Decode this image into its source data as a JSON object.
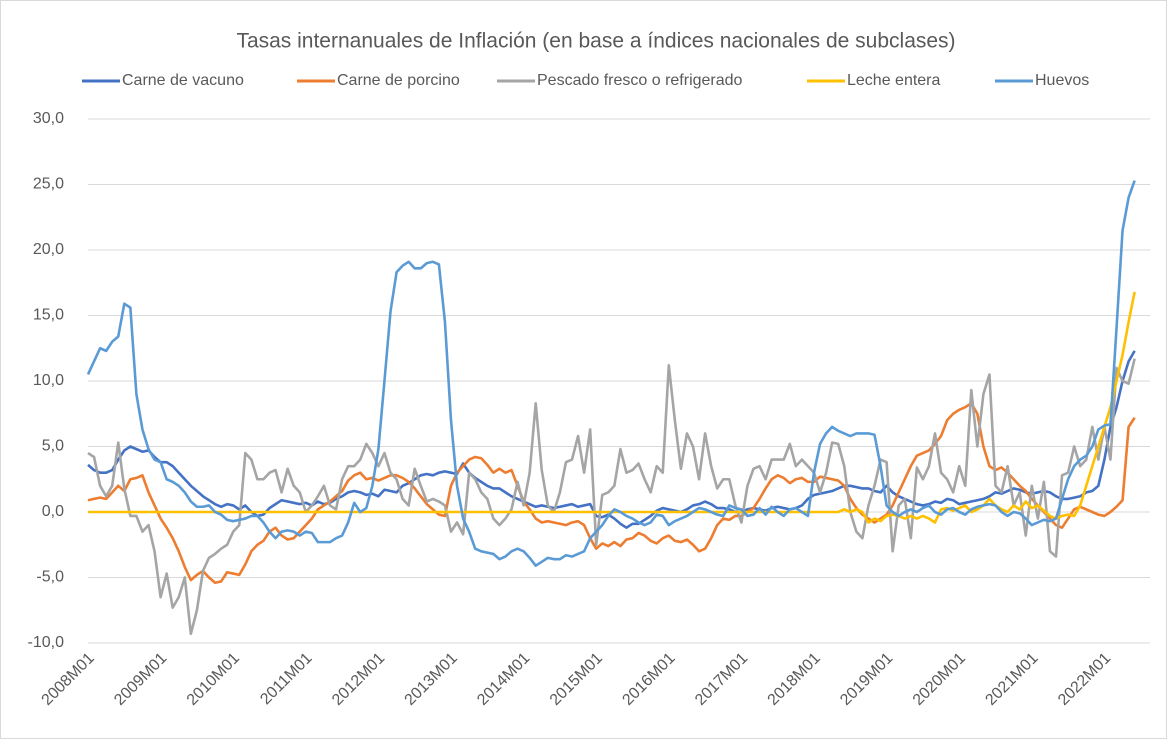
{
  "chart_data": {
    "type": "line",
    "title": "Tasas internanuales de Inflación (en base a índices nacionales de subclases)",
    "categories": [
      "2008M01",
      null,
      null,
      null,
      null,
      null,
      null,
      null,
      null,
      null,
      null,
      null,
      "2009M01",
      null,
      null,
      null,
      null,
      null,
      null,
      null,
      null,
      null,
      null,
      null,
      "2010M01",
      null,
      null,
      null,
      null,
      null,
      null,
      null,
      null,
      null,
      null,
      null,
      "2011M01",
      null,
      null,
      null,
      null,
      null,
      null,
      null,
      null,
      null,
      null,
      null,
      "2012M01",
      null,
      null,
      null,
      null,
      null,
      null,
      null,
      null,
      null,
      null,
      null,
      "2013M01",
      null,
      null,
      null,
      null,
      null,
      null,
      null,
      null,
      null,
      null,
      null,
      "2014M01",
      null,
      null,
      null,
      null,
      null,
      null,
      null,
      null,
      null,
      null,
      null,
      "2015M01",
      null,
      null,
      null,
      null,
      null,
      null,
      null,
      null,
      null,
      null,
      null,
      "2016M01",
      null,
      null,
      null,
      null,
      null,
      null,
      null,
      null,
      null,
      null,
      null,
      "2017M01",
      null,
      null,
      null,
      null,
      null,
      null,
      null,
      null,
      null,
      null,
      null,
      "2018M01",
      null,
      null,
      null,
      null,
      null,
      null,
      null,
      null,
      null,
      null,
      null,
      "2019M01",
      null,
      null,
      null,
      null,
      null,
      null,
      null,
      null,
      null,
      null,
      null,
      "2020M01",
      null,
      null,
      null,
      null,
      null,
      null,
      null,
      null,
      null,
      null,
      null,
      "2021M01",
      null,
      null,
      null,
      null,
      null,
      null,
      null,
      null,
      null,
      null,
      null,
      "2022M01",
      null,
      null,
      null,
      null,
      null
    ],
    "series": [
      {
        "name": "Carne de vacuno",
        "color": "#4472c4",
        "values": [
          3.6,
          3.2,
          3.0,
          3.0,
          3.2,
          4.0,
          4.7,
          5.0,
          4.8,
          4.6,
          4.7,
          4.2,
          3.8,
          3.8,
          3.5,
          3.0,
          2.5,
          2.0,
          1.6,
          1.2,
          0.9,
          0.6,
          0.4,
          0.6,
          0.5,
          0.2,
          0.5,
          0.0,
          -0.3,
          -0.2,
          0.3,
          0.6,
          0.9,
          0.8,
          0.7,
          0.6,
          0.7,
          0.5,
          0.8,
          0.6,
          0.7,
          1.0,
          1.2,
          1.5,
          1.6,
          1.5,
          1.3,
          1.4,
          1.2,
          1.7,
          1.6,
          1.5,
          2.0,
          2.2,
          2.5,
          2.8,
          2.9,
          2.8,
          3.0,
          3.1,
          3.0,
          2.9,
          3.7,
          3.0,
          2.6,
          2.3,
          2.0,
          1.8,
          1.8,
          1.5,
          1.2,
          1.0,
          0.8,
          0.6,
          0.4,
          0.5,
          0.4,
          0.3,
          0.4,
          0.5,
          0.6,
          0.4,
          0.5,
          0.6,
          -0.3,
          -0.4,
          -0.2,
          -0.5,
          -0.9,
          -1.2,
          -0.9,
          -0.9,
          -0.6,
          -0.3,
          0.1,
          0.3,
          0.2,
          0.1,
          0.0,
          0.2,
          0.5,
          0.6,
          0.8,
          0.6,
          0.3,
          0.3,
          0.2,
          0.0,
          0.0,
          0.2,
          0.3,
          0.2,
          0.1,
          0.3,
          0.4,
          0.3,
          0.2,
          0.3,
          0.5,
          1.0,
          1.3,
          1.4,
          1.5,
          1.6,
          1.8,
          2.0,
          2.0,
          1.9,
          1.8,
          1.8,
          1.6,
          1.5,
          2.0,
          1.5,
          1.2,
          1.0,
          0.8,
          0.6,
          0.5,
          0.6,
          0.8,
          0.7,
          1.0,
          0.9,
          0.6,
          0.7,
          0.8,
          0.9,
          1.0,
          1.2,
          1.5,
          1.4,
          1.6,
          1.8,
          1.7,
          1.5,
          1.4,
          1.5,
          1.6,
          1.5,
          1.2,
          1.0,
          1.0,
          1.1,
          1.2,
          1.5,
          1.6,
          2.0,
          4.0,
          6.5,
          8.0,
          10.0,
          11.5,
          12.3
        ]
      },
      {
        "name": "Carne de porcino",
        "color": "#ed7d31",
        "values": [
          0.9,
          1.0,
          1.1,
          1.0,
          1.5,
          2.0,
          1.6,
          2.5,
          2.6,
          2.8,
          1.5,
          0.5,
          -0.5,
          -1.2,
          -2.0,
          -3.0,
          -4.2,
          -5.2,
          -4.8,
          -4.5,
          -5.0,
          -5.4,
          -5.3,
          -4.6,
          -4.7,
          -4.8,
          -4.0,
          -3.0,
          -2.5,
          -2.2,
          -1.5,
          -1.2,
          -1.8,
          -2.1,
          -2.0,
          -1.5,
          -1.0,
          -0.5,
          0.2,
          0.5,
          0.8,
          1.2,
          1.6,
          2.4,
          2.8,
          3.0,
          2.5,
          2.6,
          2.4,
          2.6,
          2.8,
          2.8,
          2.6,
          2.3,
          1.8,
          1.2,
          0.6,
          0.2,
          -0.2,
          -0.3,
          2.0,
          3.0,
          3.5,
          4.0,
          4.2,
          4.1,
          3.6,
          3.0,
          3.3,
          3.0,
          3.2,
          2.0,
          0.8,
          0.2,
          -0.5,
          -0.8,
          -0.7,
          -0.8,
          -0.9,
          -1.0,
          -0.8,
          -0.7,
          -1.0,
          -2.0,
          -2.8,
          -2.4,
          -2.6,
          -2.3,
          -2.6,
          -2.1,
          -2.0,
          -1.6,
          -1.8,
          -2.2,
          -2.4,
          -2.0,
          -1.8,
          -2.2,
          -2.3,
          -2.1,
          -2.5,
          -3.0,
          -2.8,
          -2.0,
          -1.0,
          -0.5,
          -0.6,
          -0.3,
          -0.3,
          0.0,
          0.3,
          1.0,
          1.8,
          2.5,
          2.8,
          2.6,
          2.2,
          2.5,
          2.6,
          2.3,
          2.3,
          2.7,
          2.6,
          2.5,
          2.4,
          2.0,
          1.0,
          0.3,
          -0.2,
          -0.5,
          -0.8,
          -0.5,
          -0.2,
          0.5,
          1.5,
          2.5,
          3.5,
          4.3,
          4.5,
          4.7,
          5.2,
          5.8,
          7.0,
          7.5,
          7.8,
          8.0,
          8.3,
          7.5,
          5.0,
          3.5,
          3.2,
          3.4,
          3.0,
          2.5,
          2.0,
          1.6,
          1.0,
          0.5,
          0.0,
          -0.5,
          -1.0,
          -1.2,
          -0.5,
          0.2,
          0.4,
          0.2,
          0.0,
          -0.2,
          -0.3,
          0.0,
          0.4,
          0.9,
          6.5,
          7.2
        ]
      },
      {
        "name": "Pescado fresco o refrigerado",
        "color": "#a5a5a5",
        "values": [
          4.5,
          4.2,
          2.0,
          1.2,
          2.0,
          5.3,
          1.8,
          -0.3,
          -0.3,
          -1.5,
          -1.0,
          -3.0,
          -6.5,
          -4.7,
          -7.3,
          -6.5,
          -5.0,
          -9.3,
          -7.5,
          -4.5,
          -3.5,
          -3.2,
          -2.8,
          -2.5,
          -1.5,
          -1.0,
          4.5,
          4.0,
          2.5,
          2.5,
          3.0,
          3.2,
          1.5,
          3.3,
          2.0,
          1.5,
          0.0,
          0.5,
          1.2,
          2.0,
          0.5,
          0.2,
          2.5,
          3.5,
          3.5,
          4.0,
          5.2,
          4.5,
          3.5,
          4.5,
          3.0,
          2.5,
          1.0,
          0.5,
          3.3,
          2.0,
          0.8,
          1.0,
          0.8,
          0.5,
          -1.5,
          -0.8,
          -1.7,
          3.0,
          2.5,
          1.5,
          1.0,
          -0.5,
          -1.0,
          -0.5,
          0.2,
          2.3,
          0.5,
          3.0,
          8.3,
          3.2,
          0.5,
          0.0,
          1.5,
          3.8,
          4.0,
          5.8,
          3.0,
          6.3,
          -2.5,
          1.3,
          1.5,
          2.0,
          4.8,
          3.0,
          3.2,
          3.7,
          2.5,
          1.5,
          3.5,
          3.0,
          11.2,
          7.0,
          3.3,
          6.0,
          5.0,
          2.5,
          6.0,
          3.5,
          1.8,
          2.5,
          2.5,
          0.5,
          -0.8,
          2.0,
          3.3,
          3.5,
          2.5,
          4.0,
          4.0,
          4.0,
          5.2,
          3.5,
          4.0,
          3.5,
          3.0,
          1.5,
          3.0,
          5.3,
          5.2,
          3.5,
          0.0,
          -1.5,
          -2.0,
          0.5,
          2.0,
          4.0,
          3.8,
          -3.0,
          0.5,
          1.0,
          -2.0,
          3.4,
          2.5,
          3.5,
          6.0,
          3.0,
          2.5,
          1.5,
          3.5,
          2.0,
          9.3,
          5.0,
          9.0,
          10.5,
          2.0,
          1.5,
          3.5,
          0.5,
          1.5,
          -1.8,
          2.0,
          -0.5,
          2.3,
          -3.0,
          -3.4,
          2.8,
          3.0,
          5.0,
          3.5,
          4.0,
          6.5,
          4.0,
          6.5,
          4.0,
          11.0,
          10.0,
          9.8,
          11.7
        ]
      },
      {
        "name": "Leche entera",
        "color": "#ffc000",
        "values": [
          0,
          0,
          0,
          0,
          0,
          0,
          0,
          0,
          0,
          0,
          0,
          0,
          0,
          0,
          0,
          0,
          0,
          0,
          0,
          0,
          0,
          0,
          0,
          0,
          0,
          0,
          0,
          0,
          0,
          0,
          0,
          0,
          0,
          0,
          0,
          0,
          0,
          0,
          0,
          0,
          0,
          0,
          0,
          0,
          0,
          0,
          0,
          0,
          0,
          0,
          0,
          0,
          0,
          0,
          0,
          0,
          0,
          0,
          0,
          0,
          0,
          0,
          0,
          0,
          0,
          0,
          0,
          0,
          0,
          0,
          0,
          0,
          0,
          0,
          0,
          0,
          0,
          0,
          0,
          0,
          0,
          0,
          0,
          0,
          0,
          0,
          0,
          0,
          0,
          0,
          0,
          0,
          0,
          0,
          0,
          0,
          0,
          0,
          0,
          0,
          0,
          0,
          0,
          0,
          0,
          0,
          0,
          0,
          0,
          0,
          0,
          0,
          0,
          0,
          0,
          0,
          0,
          0,
          0,
          0,
          0,
          0,
          0,
          0,
          0,
          0.2,
          0,
          0.2,
          0,
          -0.8,
          -0.5,
          -0.7,
          -0.3,
          -0.2,
          -0.3,
          -0.5,
          -0.3,
          -0.5,
          -0.3,
          -0.5,
          -0.8,
          0.2,
          0.3,
          0.1,
          0.3,
          0.5,
          0.0,
          0.2,
          0.5,
          1.0,
          0.5,
          0.2,
          0.0,
          0.5,
          0.2,
          0.8,
          0.3,
          0.5,
          0.1,
          -0.3,
          -0.5,
          -0.3,
          -0.2,
          -0.3,
          0.5,
          2.0,
          3.5,
          5.0,
          6.5,
          8.0,
          10.0,
          12.0,
          14.5,
          16.8
        ]
      },
      {
        "name": "Huevos",
        "color": "#5b9bd5",
        "values": [
          10.5,
          11.5,
          12.5,
          12.3,
          13.0,
          13.4,
          15.9,
          15.6,
          9.0,
          6.3,
          4.8,
          4.0,
          3.8,
          2.5,
          2.3,
          2.0,
          1.5,
          0.8,
          0.4,
          0.4,
          0.5,
          0.0,
          -0.2,
          -0.6,
          -0.7,
          -0.6,
          -0.5,
          -0.3,
          -0.3,
          -0.8,
          -1.5,
          -2.0,
          -1.5,
          -1.4,
          -1.5,
          -1.8,
          -1.5,
          -1.6,
          -2.3,
          -2.3,
          -2.3,
          -2.0,
          -1.8,
          -0.8,
          0.7,
          0.0,
          0.3,
          2.0,
          4.8,
          10.0,
          15.3,
          18.3,
          18.8,
          19.1,
          18.6,
          18.6,
          19.0,
          19.1,
          18.9,
          14.5,
          7.0,
          2.0,
          -0.5,
          -1.5,
          -2.8,
          -3.0,
          -3.1,
          -3.2,
          -3.6,
          -3.4,
          -3.0,
          -2.8,
          -3.0,
          -3.5,
          -4.1,
          -3.8,
          -3.5,
          -3.6,
          -3.6,
          -3.3,
          -3.4,
          -3.2,
          -3.0,
          -2.0,
          -1.5,
          -1.0,
          -0.3,
          0.2,
          0.0,
          -0.3,
          -0.5,
          -0.8,
          -1.0,
          -0.8,
          -0.2,
          -0.3,
          -1.0,
          -0.7,
          -0.5,
          -0.3,
          0.0,
          0.3,
          0.2,
          0.0,
          -0.2,
          -0.3,
          0.5,
          0.3,
          0.2,
          -0.3,
          -0.2,
          0.3,
          -0.2,
          0.4,
          0.0,
          -0.3,
          0.2,
          0.3,
          0.0,
          -0.3,
          3.0,
          5.2,
          6.0,
          6.5,
          6.2,
          6.0,
          5.8,
          6.0,
          6.0,
          6.0,
          5.9,
          3.5,
          0.5,
          0.0,
          -0.3,
          0.0,
          0.2,
          0.0,
          0.3,
          0.5,
          0.0,
          -0.2,
          0.2,
          0.3,
          0.0,
          -0.2,
          0.2,
          0.4,
          0.5,
          0.6,
          0.5,
          0.0,
          -0.3,
          0.0,
          -0.1,
          -0.5,
          -1.0,
          -0.8,
          -0.6,
          -0.7,
          -0.5,
          1.0,
          2.5,
          3.5,
          4.0,
          4.3,
          5.0,
          6.3,
          6.6,
          6.7,
          14.0,
          21.5,
          24.0,
          25.3
        ]
      }
    ],
    "ylim": [
      -10,
      30
    ],
    "yticks": [
      {
        "value": -10,
        "label": "-10,0"
      },
      {
        "value": -5,
        "label": "-5,0"
      },
      {
        "value": 0,
        "label": "0,0"
      },
      {
        "value": 5,
        "label": "5,0"
      },
      {
        "value": 10,
        "label": "10,0"
      },
      {
        "value": 15,
        "label": "15,0"
      },
      {
        "value": 20,
        "label": "20,0"
      },
      {
        "value": 25,
        "label": "25,0"
      },
      {
        "value": 30,
        "label": "30,0"
      }
    ],
    "grid": true,
    "legend": "top"
  }
}
